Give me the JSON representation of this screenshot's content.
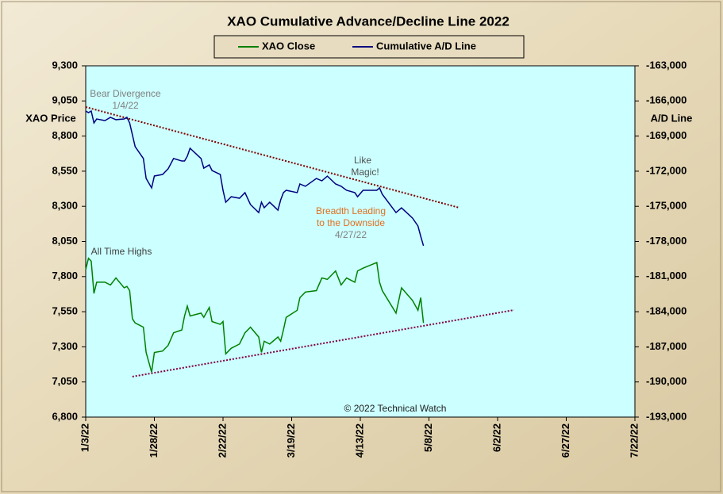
{
  "chart_data": {
    "type": "line",
    "title": "XAO Cumulative Advance/Decline Line 2022",
    "y_label": "XAO Price",
    "y2_label": "A/D Line",
    "x": [
      "2022-01-03",
      "2022-01-04",
      "2022-01-05",
      "2022-01-06",
      "2022-01-07",
      "2022-01-10",
      "2022-01-12",
      "2022-01-14",
      "2022-01-17",
      "2022-01-18",
      "2022-01-19",
      "2022-01-20",
      "2022-01-21",
      "2022-01-24",
      "2022-01-25",
      "2022-01-27",
      "2022-01-28",
      "2022-01-31",
      "2022-02-02",
      "2022-02-04",
      "2022-02-07",
      "2022-02-08",
      "2022-02-09",
      "2022-02-10",
      "2022-02-14",
      "2022-02-15",
      "2022-02-17",
      "2022-02-18",
      "2022-02-21",
      "2022-02-22",
      "2022-02-23",
      "2022-02-25",
      "2022-02-28",
      "2022-03-02",
      "2022-03-04",
      "2022-03-07",
      "2022-03-08",
      "2022-03-09",
      "2022-03-11",
      "2022-03-14",
      "2022-03-15",
      "2022-03-16",
      "2022-03-17",
      "2022-03-21",
      "2022-03-22",
      "2022-03-24",
      "2022-03-28",
      "2022-03-30",
      "2022-04-01",
      "2022-04-04",
      "2022-04-06",
      "2022-04-08",
      "2022-04-11",
      "2022-04-12",
      "2022-04-14",
      "2022-04-19",
      "2022-04-20",
      "2022-04-21",
      "2022-04-26",
      "2022-04-28",
      "2022-05-02",
      "2022-05-04",
      "2022-05-05",
      "2022-05-06"
    ],
    "series": [
      {
        "name": "XAO Close",
        "color": "#008000",
        "axis": "y",
        "values": [
          7850,
          7930,
          7910,
          7680,
          7760,
          7760,
          7740,
          7790,
          7720,
          7730,
          7700,
          7500,
          7470,
          7440,
          7260,
          7120,
          7260,
          7270,
          7310,
          7400,
          7420,
          7520,
          7590,
          7520,
          7540,
          7510,
          7580,
          7480,
          7460,
          7480,
          7250,
          7290,
          7320,
          7400,
          7440,
          7370,
          7260,
          7340,
          7320,
          7370,
          7340,
          7420,
          7510,
          7560,
          7650,
          7690,
          7700,
          7790,
          7780,
          7840,
          7740,
          7790,
          7760,
          7840,
          7860,
          7900,
          7760,
          7700,
          7540,
          7720,
          7630,
          7560,
          7650,
          7470
        ]
      },
      {
        "name": "Cumulative A/D Line",
        "color": "#000080",
        "axis": "y2",
        "values": [
          -166860,
          -167000,
          -166860,
          -167880,
          -167540,
          -167680,
          -167400,
          -167600,
          -167540,
          -167400,
          -167880,
          -168890,
          -169900,
          -170920,
          -172620,
          -173430,
          -172410,
          -172280,
          -171800,
          -170920,
          -171130,
          -171130,
          -170720,
          -170040,
          -170920,
          -171740,
          -171460,
          -171940,
          -172280,
          -173630,
          -174650,
          -174180,
          -174310,
          -173830,
          -174850,
          -175530,
          -174650,
          -175120,
          -174650,
          -175330,
          -174450,
          -173830,
          -173630,
          -173830,
          -173090,
          -173290,
          -172620,
          -172820,
          -172420,
          -173090,
          -173290,
          -173630,
          -173830,
          -174180,
          -173630,
          -173630,
          -173430,
          -173970,
          -175530,
          -175130,
          -176000,
          -176680,
          -177560,
          -178370
        ]
      }
    ],
    "trendlines": [
      {
        "axis": "y2",
        "color": "#800000",
        "x": [
          "2022-01-03",
          "2022-05-19"
        ],
        "values": [
          -166520,
          -175120
        ]
      },
      {
        "axis": "y",
        "color": "#800040",
        "x": [
          "2022-01-20",
          "2022-06-08"
        ],
        "values": [
          7088,
          7562
        ]
      }
    ],
    "annotations": [
      {
        "lines": [
          "Bear Divergence",
          "1/4/22"
        ],
        "color": "#808080"
      },
      {
        "lines": [
          "Like",
          "Magic!"
        ],
        "color": "#505050"
      },
      {
        "lines": [
          "Breadth Leading",
          "to the Downside"
        ],
        "color": "#e07020"
      },
      {
        "lines": [
          "4/27/22"
        ],
        "color": "#808080"
      },
      {
        "lines": [
          "All Time Highs"
        ],
        "color": "#404040"
      },
      {
        "lines": [
          "© 2022 Technical Watch"
        ],
        "color": "#202020"
      }
    ],
    "xlim": [
      "2022-01-03",
      "2022-07-22"
    ],
    "xticks": [
      {
        "value": "2022-01-03",
        "label": "1/3/22"
      },
      {
        "value": "2022-01-28",
        "label": "1/28/22"
      },
      {
        "value": "2022-02-22",
        "label": "2/22/22"
      },
      {
        "value": "2022-03-19",
        "label": "3/19/22"
      },
      {
        "value": "2022-04-13",
        "label": "4/13/22"
      },
      {
        "value": "2022-05-08",
        "label": "5/8/22"
      },
      {
        "value": "2022-06-02",
        "label": "6/2/22"
      },
      {
        "value": "2022-06-27",
        "label": "6/27/22"
      },
      {
        "value": "2022-07-22",
        "label": "7/22/22"
      }
    ],
    "ylim": [
      6800,
      9300
    ],
    "yticks": [
      {
        "value": 6800,
        "label": "6,800"
      },
      {
        "value": 7050,
        "label": "7,050"
      },
      {
        "value": 7300,
        "label": "7,300"
      },
      {
        "value": 7550,
        "label": "7,550"
      },
      {
        "value": 7800,
        "label": "7,800"
      },
      {
        "value": 8050,
        "label": "8,050"
      },
      {
        "value": 8300,
        "label": "8,300"
      },
      {
        "value": 8550,
        "label": "8,550"
      },
      {
        "value": 8800,
        "label": "8,800"
      },
      {
        "value": 9050,
        "label": "9,050"
      },
      {
        "value": 9300,
        "label": "9,300"
      }
    ],
    "y2lim": [
      -193000,
      -163000
    ],
    "y2ticks": [
      {
        "value": -193000,
        "label": "-193,000"
      },
      {
        "value": -190000,
        "label": "-190,000"
      },
      {
        "value": -187000,
        "label": "-187,000"
      },
      {
        "value": -184000,
        "label": "-184,000"
      },
      {
        "value": -181000,
        "label": "-181,000"
      },
      {
        "value": -178000,
        "label": "-178,000"
      },
      {
        "value": -175000,
        "label": "-175,000"
      },
      {
        "value": -172000,
        "label": "-172,000"
      },
      {
        "value": -169000,
        "label": "-169,000"
      },
      {
        "value": -166000,
        "label": "-166,000"
      },
      {
        "value": -163000,
        "label": "-163,000"
      }
    ],
    "grid": false,
    "plot_background": "#ccffff"
  }
}
